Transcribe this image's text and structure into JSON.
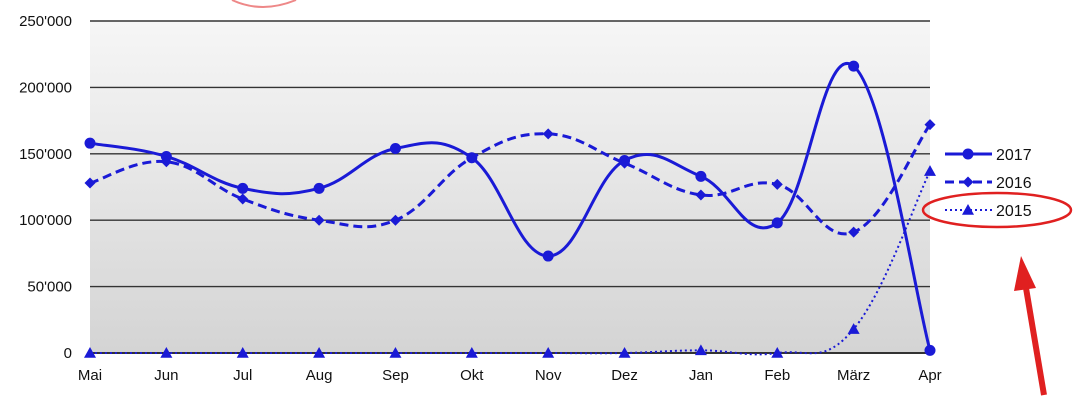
{
  "chart_data": {
    "type": "line",
    "categories": [
      "Mai",
      "Jun",
      "Jul",
      "Aug",
      "Sep",
      "Okt",
      "Nov",
      "Dez",
      "Jan",
      "Feb",
      "März",
      "Apr"
    ],
    "y_ticks": [
      "0",
      "50'000",
      "100'000",
      "150'000",
      "200'000",
      "250'000"
    ],
    "ylim": [
      0,
      250000
    ],
    "grid": true,
    "legend_position": "right",
    "series": [
      {
        "name": "2017",
        "values": [
          158000,
          148000,
          124000,
          124000,
          154000,
          147000,
          73000,
          145000,
          133000,
          98000,
          216000,
          2000
        ],
        "color": "#1a1ad6",
        "line_style": "solid",
        "marker": "circle"
      },
      {
        "name": "2016",
        "values": [
          128000,
          144000,
          116000,
          100000,
          100000,
          147000,
          165000,
          143000,
          119000,
          127000,
          91000,
          172000
        ],
        "color": "#1a1ad6",
        "line_style": "dashed",
        "marker": "diamond"
      },
      {
        "name": "2015",
        "values": [
          0,
          0,
          0,
          0,
          0,
          0,
          0,
          0,
          2000,
          0,
          18000,
          137000
        ],
        "color": "#1a1ad6",
        "line_style": "dotted",
        "marker": "triangle"
      }
    ],
    "annotations": {
      "highlight_color": "#e02020",
      "highlight_target": "2015"
    }
  }
}
